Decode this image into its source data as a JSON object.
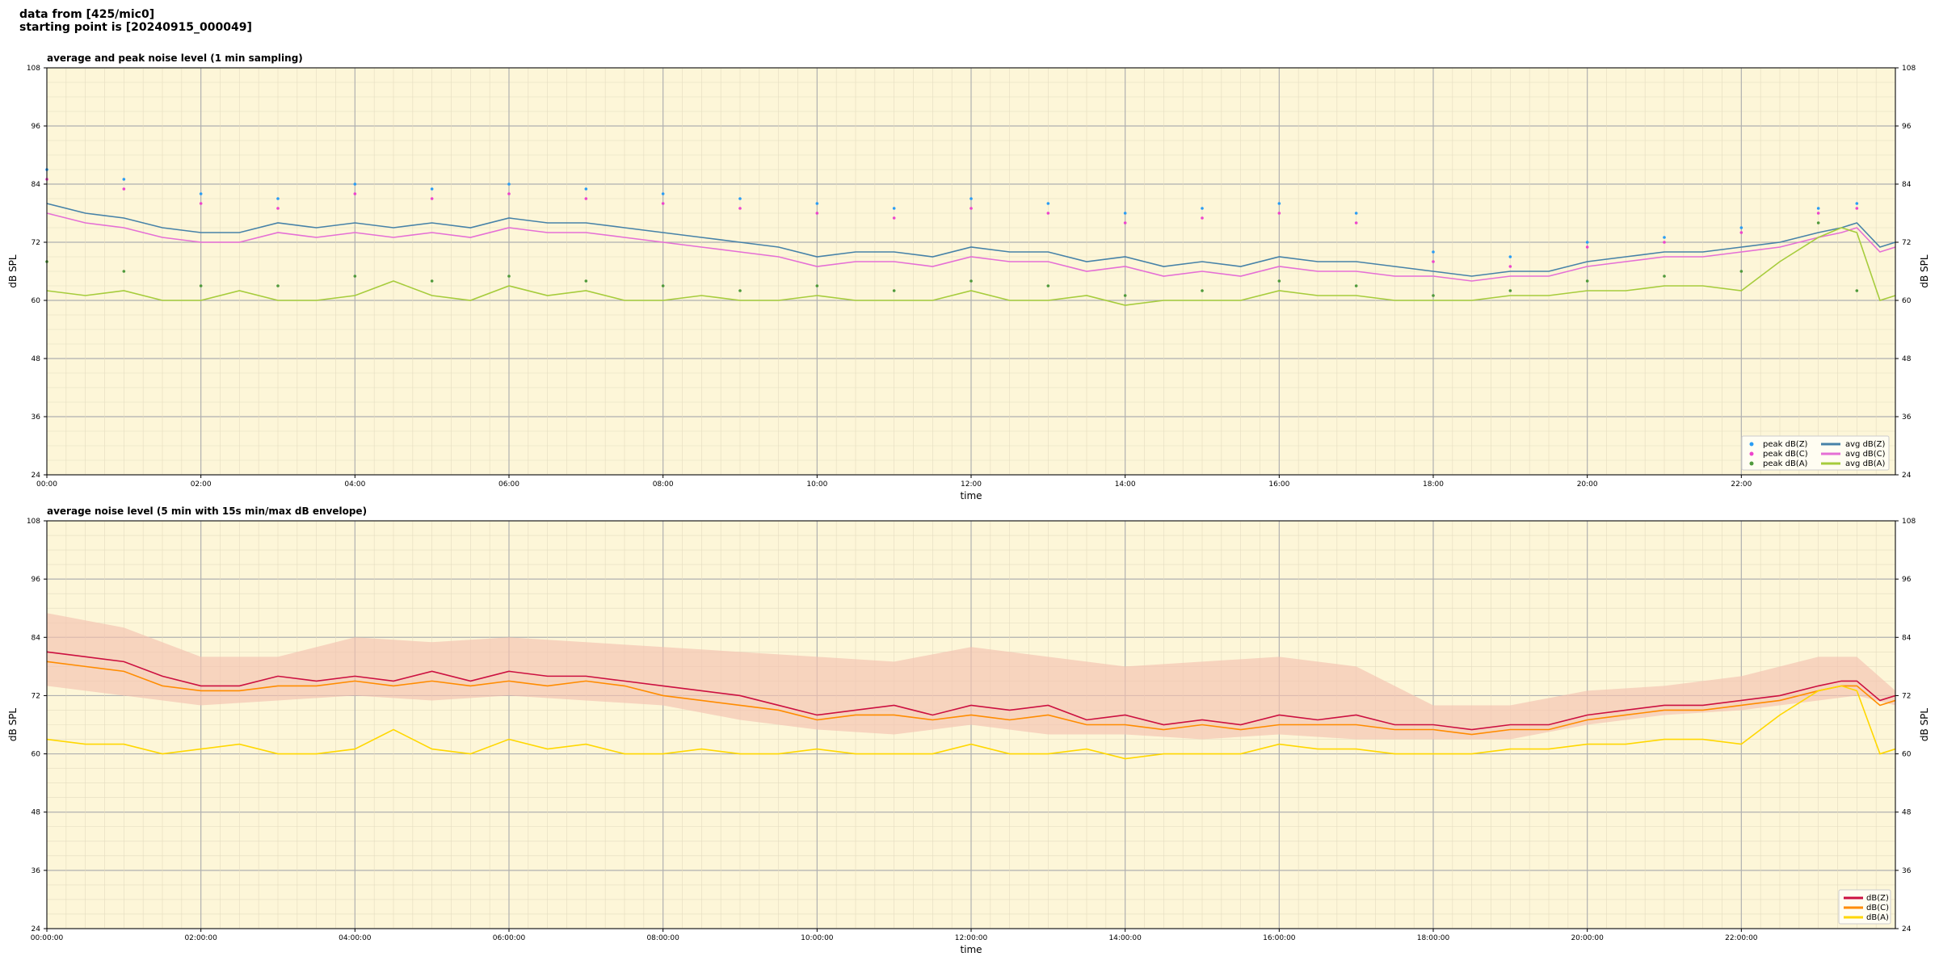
{
  "header": {
    "line1": "data from [425/mic0]",
    "line2": "starting point is [20240915_000049]"
  },
  "chart_data": [
    {
      "type": "line",
      "title": "average and peak noise level (1 min sampling)",
      "xlabel": "time",
      "ylabel": "dB SPL",
      "ylim": [
        24,
        108
      ],
      "yticks": [
        24,
        36,
        48,
        60,
        72,
        84,
        96,
        108
      ],
      "xlim_hours": [
        0,
        24
      ],
      "xtick_labels": [
        "00:00",
        "02:00",
        "04:00",
        "06:00",
        "08:00",
        "10:00",
        "12:00",
        "14:00",
        "16:00",
        "18:00",
        "20:00",
        "22:00"
      ],
      "grid": true,
      "legend_position": "bottom-right",
      "background": "#fdf6d8",
      "series": [
        {
          "name": "peak dB(Z)",
          "kind": "scatter",
          "color": "#2a9df4",
          "x": [
            0,
            1,
            2,
            3,
            4,
            5,
            6,
            7,
            8,
            9,
            10,
            11,
            12,
            13,
            14,
            15,
            16,
            17,
            18,
            19,
            20,
            21,
            22,
            23,
            23.5
          ],
          "y": [
            87,
            85,
            82,
            81,
            84,
            83,
            84,
            83,
            82,
            81,
            80,
            79,
            81,
            80,
            78,
            79,
            80,
            78,
            70,
            69,
            72,
            73,
            75,
            79,
            80
          ]
        },
        {
          "name": "peak dB(C)",
          "kind": "scatter",
          "color": "#ee44cc",
          "x": [
            0,
            1,
            2,
            3,
            4,
            5,
            6,
            7,
            8,
            9,
            10,
            11,
            12,
            13,
            14,
            15,
            16,
            17,
            18,
            19,
            20,
            21,
            22,
            23,
            23.5
          ],
          "y": [
            85,
            83,
            80,
            79,
            82,
            81,
            82,
            81,
            80,
            79,
            78,
            77,
            79,
            78,
            76,
            77,
            78,
            76,
            68,
            67,
            71,
            72,
            74,
            78,
            79
          ]
        },
        {
          "name": "peak dB(A)",
          "kind": "scatter",
          "color": "#4f9a3c",
          "x": [
            0,
            1,
            2,
            3,
            4,
            5,
            6,
            7,
            8,
            9,
            10,
            11,
            12,
            13,
            14,
            15,
            16,
            17,
            18,
            19,
            20,
            21,
            22,
            23,
            23.5
          ],
          "y": [
            68,
            66,
            63,
            63,
            65,
            64,
            65,
            64,
            63,
            62,
            63,
            62,
            64,
            63,
            61,
            62,
            64,
            63,
            61,
            62,
            64,
            65,
            66,
            76,
            62
          ]
        },
        {
          "name": "avg dB(Z)",
          "kind": "line",
          "color": "#4682a8",
          "x": [
            0,
            0.5,
            1,
            1.5,
            2,
            2.5,
            3,
            3.5,
            4,
            4.5,
            5,
            5.5,
            6,
            6.5,
            7,
            7.5,
            8,
            8.5,
            9,
            9.5,
            10,
            10.5,
            11,
            11.5,
            12,
            12.5,
            13,
            13.5,
            14,
            14.5,
            15,
            15.5,
            16,
            16.5,
            17,
            17.5,
            18,
            18.5,
            19,
            19.5,
            20,
            20.5,
            21,
            21.5,
            22,
            22.5,
            23,
            23.3,
            23.5,
            23.8,
            24
          ],
          "y": [
            80,
            78,
            77,
            75,
            74,
            74,
            76,
            75,
            76,
            75,
            76,
            75,
            77,
            76,
            76,
            75,
            74,
            73,
            72,
            71,
            69,
            70,
            70,
            69,
            71,
            70,
            70,
            68,
            69,
            67,
            68,
            67,
            69,
            68,
            68,
            67,
            66,
            65,
            66,
            66,
            68,
            69,
            70,
            70,
            71,
            72,
            74,
            75,
            76,
            71,
            72
          ]
        },
        {
          "name": "avg dB(C)",
          "kind": "line",
          "color": "#e56fd5",
          "x": [
            0,
            0.5,
            1,
            1.5,
            2,
            2.5,
            3,
            3.5,
            4,
            4.5,
            5,
            5.5,
            6,
            6.5,
            7,
            7.5,
            8,
            8.5,
            9,
            9.5,
            10,
            10.5,
            11,
            11.5,
            12,
            12.5,
            13,
            13.5,
            14,
            14.5,
            15,
            15.5,
            16,
            16.5,
            17,
            17.5,
            18,
            18.5,
            19,
            19.5,
            20,
            20.5,
            21,
            21.5,
            22,
            22.5,
            23,
            23.3,
            23.5,
            23.8,
            24
          ],
          "y": [
            78,
            76,
            75,
            73,
            72,
            72,
            74,
            73,
            74,
            73,
            74,
            73,
            75,
            74,
            74,
            73,
            72,
            71,
            70,
            69,
            67,
            68,
            68,
            67,
            69,
            68,
            68,
            66,
            67,
            65,
            66,
            65,
            67,
            66,
            66,
            65,
            65,
            64,
            65,
            65,
            67,
            68,
            69,
            69,
            70,
            71,
            73,
            74,
            75,
            70,
            71
          ]
        },
        {
          "name": "avg dB(A)",
          "kind": "line",
          "color": "#a6cc3c",
          "x": [
            0,
            0.5,
            1,
            1.5,
            2,
            2.5,
            3,
            3.5,
            4,
            4.5,
            5,
            5.5,
            6,
            6.5,
            7,
            7.5,
            8,
            8.5,
            9,
            9.5,
            10,
            10.5,
            11,
            11.5,
            12,
            12.5,
            13,
            13.5,
            14,
            14.5,
            15,
            15.5,
            16,
            16.5,
            17,
            17.5,
            18,
            18.5,
            19,
            19.5,
            20,
            20.5,
            21,
            21.5,
            22,
            22.5,
            23,
            23.3,
            23.5,
            23.8,
            24
          ],
          "y": [
            62,
            61,
            62,
            60,
            60,
            62,
            60,
            60,
            61,
            64,
            61,
            60,
            63,
            61,
            62,
            60,
            60,
            61,
            60,
            60,
            61,
            60,
            60,
            60,
            62,
            60,
            60,
            61,
            59,
            60,
            60,
            60,
            62,
            61,
            61,
            60,
            60,
            60,
            61,
            61,
            62,
            62,
            63,
            63,
            62,
            68,
            73,
            75,
            74,
            60,
            61
          ]
        }
      ]
    },
    {
      "type": "line",
      "title": "average noise level (5 min with 15s min/max dB envelope)",
      "xlabel": "time",
      "ylabel": "dB SPL",
      "ylim": [
        24,
        108
      ],
      "yticks": [
        24,
        36,
        48,
        60,
        72,
        84,
        96,
        108
      ],
      "xlim_hours": [
        0,
        24
      ],
      "xtick_labels": [
        "00:00:00",
        "02:00:00",
        "04:00:00",
        "06:00:00",
        "08:00:00",
        "10:00:00",
        "12:00:00",
        "14:00:00",
        "16:00:00",
        "18:00:00",
        "20:00:00",
        "22:00:00"
      ],
      "grid": true,
      "legend_position": "bottom-right",
      "background": "#fdf6d8",
      "envelope": {
        "color": "#f4c2b0",
        "x": [
          0,
          1,
          2,
          3,
          4,
          5,
          6,
          7,
          8,
          9,
          10,
          11,
          12,
          13,
          14,
          15,
          16,
          17,
          18,
          19,
          20,
          21,
          22,
          23,
          23.5,
          24
        ],
        "max": [
          89,
          86,
          80,
          80,
          84,
          83,
          84,
          83,
          82,
          81,
          80,
          79,
          82,
          80,
          78,
          79,
          80,
          78,
          70,
          70,
          73,
          74,
          76,
          80,
          80,
          73
        ],
        "min": [
          74,
          72,
          70,
          71,
          72,
          71,
          72,
          71,
          70,
          67,
          65,
          64,
          66,
          64,
          64,
          63,
          64,
          63,
          63,
          63,
          66,
          68,
          69,
          71,
          72,
          70
        ]
      },
      "series": [
        {
          "name": "dB(Z)",
          "kind": "line",
          "color": "#cc1040",
          "x": [
            0,
            0.5,
            1,
            1.5,
            2,
            2.5,
            3,
            3.5,
            4,
            4.5,
            5,
            5.5,
            6,
            6.5,
            7,
            7.5,
            8,
            8.5,
            9,
            9.5,
            10,
            10.5,
            11,
            11.5,
            12,
            12.5,
            13,
            13.5,
            14,
            14.5,
            15,
            15.5,
            16,
            16.5,
            17,
            17.5,
            18,
            18.5,
            19,
            19.5,
            20,
            20.5,
            21,
            21.5,
            22,
            22.5,
            23,
            23.3,
            23.5,
            23.8,
            24
          ],
          "y": [
            81,
            80,
            79,
            76,
            74,
            74,
            76,
            75,
            76,
            75,
            77,
            75,
            77,
            76,
            76,
            75,
            74,
            73,
            72,
            70,
            68,
            69,
            70,
            68,
            70,
            69,
            70,
            67,
            68,
            66,
            67,
            66,
            68,
            67,
            68,
            66,
            66,
            65,
            66,
            66,
            68,
            69,
            70,
            70,
            71,
            72,
            74,
            75,
            75,
            71,
            72
          ]
        },
        {
          "name": "dB(C)",
          "kind": "line",
          "color": "#ff8c00",
          "x": [
            0,
            0.5,
            1,
            1.5,
            2,
            2.5,
            3,
            3.5,
            4,
            4.5,
            5,
            5.5,
            6,
            6.5,
            7,
            7.5,
            8,
            8.5,
            9,
            9.5,
            10,
            10.5,
            11,
            11.5,
            12,
            12.5,
            13,
            13.5,
            14,
            14.5,
            15,
            15.5,
            16,
            16.5,
            17,
            17.5,
            18,
            18.5,
            19,
            19.5,
            20,
            20.5,
            21,
            21.5,
            22,
            22.5,
            23,
            23.3,
            23.5,
            23.8,
            24
          ],
          "y": [
            79,
            78,
            77,
            74,
            73,
            73,
            74,
            74,
            75,
            74,
            75,
            74,
            75,
            74,
            75,
            74,
            72,
            71,
            70,
            69,
            67,
            68,
            68,
            67,
            68,
            67,
            68,
            66,
            66,
            65,
            66,
            65,
            66,
            66,
            66,
            65,
            65,
            64,
            65,
            65,
            67,
            68,
            69,
            69,
            70,
            71,
            73,
            74,
            74,
            70,
            71
          ]
        },
        {
          "name": "dB(A)",
          "kind": "line",
          "color": "#ffd700",
          "x": [
            0,
            0.5,
            1,
            1.5,
            2,
            2.5,
            3,
            3.5,
            4,
            4.5,
            5,
            5.5,
            6,
            6.5,
            7,
            7.5,
            8,
            8.5,
            9,
            9.5,
            10,
            10.5,
            11,
            11.5,
            12,
            12.5,
            13,
            13.5,
            14,
            14.5,
            15,
            15.5,
            16,
            16.5,
            17,
            17.5,
            18,
            18.5,
            19,
            19.5,
            20,
            20.5,
            21,
            21.5,
            22,
            22.5,
            23,
            23.3,
            23.5,
            23.8,
            24
          ],
          "y": [
            63,
            62,
            62,
            60,
            61,
            62,
            60,
            60,
            61,
            65,
            61,
            60,
            63,
            61,
            62,
            60,
            60,
            61,
            60,
            60,
            61,
            60,
            60,
            60,
            62,
            60,
            60,
            61,
            59,
            60,
            60,
            60,
            62,
            61,
            61,
            60,
            60,
            60,
            61,
            61,
            62,
            62,
            63,
            63,
            62,
            68,
            73,
            74,
            73,
            60,
            61
          ]
        }
      ]
    }
  ]
}
